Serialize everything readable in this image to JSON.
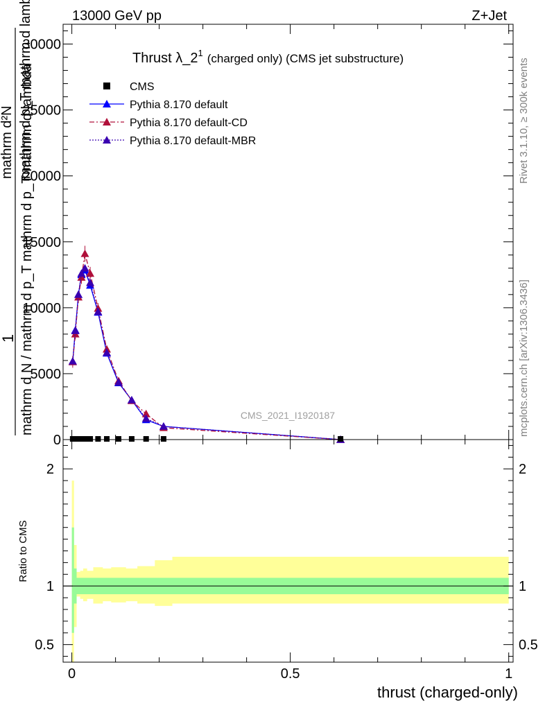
{
  "header": {
    "left": "13000 GeV pp",
    "right": "Z+Jet"
  },
  "side_text": {
    "rivet": "Rivet 3.1.10, ≥ 300k events",
    "mcplots": "mcplots.cern.ch [arXiv:1306.3436]"
  },
  "chart_data": [
    {
      "type": "line",
      "panel": "main",
      "title": "Thrust λ_2¹ (charged only) (CMS jet substructure)",
      "title_main": "Thrust λ_2",
      "title_sup": "1",
      "title_rest": "(charged only) (CMS jet substructure)",
      "watermark": "CMS_2021_I1920187",
      "ylabel_lines": [
        "1",
        "mathrm d N / mathrm d p_T mathrm d p_T mathrm d lambda",
        "mathrm d²N",
        "mathrm d p_T mathrm d lambda"
      ],
      "xlabel": "thrust (charged-only)",
      "xlim": [
        -0.02,
        1.01
      ],
      "ylim": [
        0,
        31500
      ],
      "yticks": [
        0,
        5000,
        10000,
        15000,
        20000,
        25000,
        30000
      ],
      "ytick_labels": [
        "0",
        "5000",
        "10000",
        "15000",
        "20000",
        "25000",
        "30000"
      ],
      "legend": {
        "position": "top-left",
        "entries": [
          {
            "name": "CMS",
            "color": "#000000",
            "marker": "square",
            "line": "none"
          },
          {
            "name": "Pythia 8.170 default",
            "color": "#0000ff",
            "marker": "triangle",
            "line": "solid"
          },
          {
            "name": "Pythia 8.170 default-CD",
            "color": "#b0103a",
            "marker": "triangle",
            "line": "dashdot"
          },
          {
            "name": "Pythia 8.170 default-MBR",
            "color": "#3a00b0",
            "marker": "triangle",
            "line": "dotted"
          }
        ]
      },
      "cms_points": {
        "x": [
          0.002,
          0.008,
          0.015,
          0.022,
          0.03,
          0.042,
          0.06,
          0.08,
          0.107,
          0.137,
          0.17,
          0.21,
          0.615
        ],
        "y": [
          0,
          0,
          0,
          0,
          0,
          0,
          0,
          0,
          0,
          0,
          0,
          0,
          0
        ]
      },
      "series": [
        {
          "name": "Pythia 8.170 default",
          "color": "#0000ff",
          "x": [
            0.002,
            0.008,
            0.015,
            0.022,
            0.03,
            0.042,
            0.06,
            0.08,
            0.107,
            0.137,
            0.17,
            0.21,
            0.615
          ],
          "y": [
            5900,
            8300,
            11000,
            12500,
            12850,
            11700,
            9650,
            6550,
            4300,
            3000,
            1500,
            1000,
            0
          ]
        },
        {
          "name": "Pythia 8.170 default-CD",
          "color": "#b0103a",
          "x": [
            0.002,
            0.008,
            0.015,
            0.022,
            0.03,
            0.042,
            0.06,
            0.08,
            0.107,
            0.137,
            0.17,
            0.21,
            0.615
          ],
          "y": [
            5900,
            8000,
            10800,
            12300,
            14100,
            12600,
            9950,
            6850,
            4450,
            2950,
            1950,
            900,
            0
          ],
          "err": [
            450,
            400,
            450,
            500,
            600,
            500,
            400,
            300,
            200,
            150,
            120,
            90,
            0
          ]
        },
        {
          "name": "Pythia 8.170 default-MBR",
          "color": "#3a00b0",
          "x": [
            0.002,
            0.008,
            0.015,
            0.022,
            0.03,
            0.042,
            0.06,
            0.08,
            0.107,
            0.137,
            0.17,
            0.21,
            0.615
          ],
          "y": [
            5950,
            8250,
            11000,
            12600,
            13000,
            11900,
            9700,
            6600,
            4350,
            3000,
            1600,
            1000,
            0
          ]
        }
      ]
    },
    {
      "type": "area",
      "panel": "ratio",
      "ylabel": "Ratio to CMS",
      "ylim": [
        0.35,
        2.25
      ],
      "yticks": [
        0.5,
        1,
        2
      ],
      "ytick_labels": [
        "0.5",
        "1",
        "2"
      ],
      "xticks": [
        0,
        0.5,
        1
      ],
      "xtick_labels": [
        "0",
        "0.5",
        "1"
      ],
      "reference": 1,
      "bands": {
        "edges": [
          0.0,
          0.005,
          0.011,
          0.019,
          0.026,
          0.035,
          0.049,
          0.071,
          0.09,
          0.124,
          0.15,
          0.19,
          0.23,
          1.0
        ],
        "inner_up": [
          1.5,
          1.15,
          1.07,
          1.07,
          1.07,
          1.07,
          1.07,
          1.07,
          1.07,
          1.07,
          1.07,
          1.07,
          1.07
        ],
        "inner_down": [
          0.6,
          0.85,
          0.93,
          0.93,
          0.93,
          0.93,
          0.93,
          0.93,
          0.93,
          0.93,
          0.93,
          0.93,
          0.93
        ],
        "outer_up": [
          1.9,
          1.35,
          1.12,
          1.13,
          1.15,
          1.13,
          1.16,
          1.15,
          1.16,
          1.15,
          1.17,
          1.22,
          1.25
        ],
        "outer_down": [
          0.35,
          0.65,
          0.91,
          0.89,
          0.87,
          0.89,
          0.85,
          0.87,
          0.86,
          0.87,
          0.85,
          0.83,
          0.85
        ],
        "inner_color": "#98fb98",
        "outer_color": "#ffff99"
      }
    }
  ]
}
